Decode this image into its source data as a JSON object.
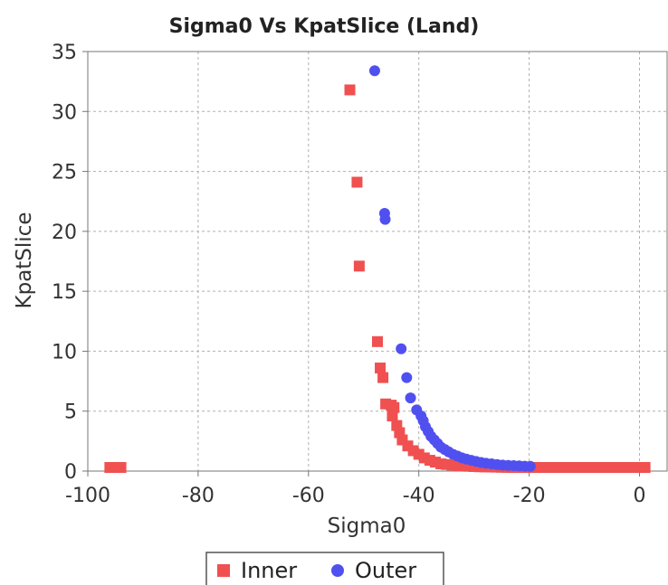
{
  "chart_data": {
    "type": "scatter",
    "title": "Sigma0 Vs KpatSlice (Land)",
    "xlabel": "Sigma0",
    "ylabel": "KpatSlice",
    "xlim": [
      -100,
      5
    ],
    "ylim": [
      0,
      35
    ],
    "xticks": [
      -100,
      -80,
      -60,
      -40,
      -20,
      0
    ],
    "yticks": [
      0,
      5,
      10,
      15,
      20,
      25,
      30,
      35
    ],
    "grid": true,
    "legend_position": "bottom-center",
    "series": [
      {
        "name": "Inner",
        "marker": "square",
        "color": "#f05050",
        "points": [
          [
            -96,
            0.3
          ],
          [
            -95,
            0.3
          ],
          [
            -94,
            0.3
          ],
          [
            -52.5,
            31.8
          ],
          [
            -51.2,
            24.1
          ],
          [
            -50.8,
            17.1
          ],
          [
            -47.5,
            10.8
          ],
          [
            -47,
            8.6
          ],
          [
            -46.5,
            7.8
          ],
          [
            -46,
            5.6
          ],
          [
            -45,
            5.5
          ],
          [
            -44.5,
            5.3
          ],
          [
            -44.8,
            4.6
          ],
          [
            -44,
            3.8
          ],
          [
            -43.5,
            3.2
          ],
          [
            -43,
            2.6
          ],
          [
            -42,
            2.1
          ],
          [
            -41,
            1.7
          ],
          [
            -40,
            1.4
          ],
          [
            -39,
            1.1
          ],
          [
            -38,
            0.9
          ],
          [
            -37,
            0.75
          ],
          [
            -36,
            0.6
          ],
          [
            -35,
            0.55
          ],
          [
            -34,
            0.5
          ],
          [
            -33,
            0.45
          ],
          [
            -32,
            0.42
          ],
          [
            -31,
            0.4
          ],
          [
            -30,
            0.38
          ],
          [
            -29,
            0.36
          ],
          [
            -28,
            0.35
          ],
          [
            -27,
            0.34
          ],
          [
            -26,
            0.33
          ],
          [
            -25,
            0.32
          ],
          [
            -24,
            0.31
          ],
          [
            -23,
            0.3
          ],
          [
            -22,
            0.3
          ],
          [
            -21,
            0.3
          ],
          [
            -20,
            0.3
          ],
          [
            -19,
            0.3
          ],
          [
            -18,
            0.3
          ],
          [
            -17,
            0.3
          ],
          [
            -16,
            0.3
          ],
          [
            -15,
            0.3
          ],
          [
            -14,
            0.3
          ],
          [
            -13,
            0.3
          ],
          [
            -12,
            0.3
          ],
          [
            -11,
            0.3
          ],
          [
            -10,
            0.3
          ],
          [
            -9,
            0.3
          ],
          [
            -8,
            0.3
          ],
          [
            -7,
            0.3
          ],
          [
            -6,
            0.3
          ],
          [
            -5,
            0.3
          ],
          [
            -4,
            0.3
          ],
          [
            -3,
            0.3
          ],
          [
            -2,
            0.3
          ],
          [
            -1,
            0.3
          ],
          [
            0,
            0.3
          ],
          [
            1,
            0.3
          ]
        ]
      },
      {
        "name": "Outer",
        "marker": "circle",
        "color": "#5050f0",
        "points": [
          [
            -48,
            33.4
          ],
          [
            -46.2,
            21.5
          ],
          [
            -46.1,
            21.0
          ],
          [
            -43.2,
            10.2
          ],
          [
            -42.2,
            7.8
          ],
          [
            -41.5,
            6.1
          ],
          [
            -40.4,
            5.1
          ],
          [
            -39.6,
            4.6
          ],
          [
            -39.2,
            4.2
          ],
          [
            -38.8,
            3.7
          ],
          [
            -38.3,
            3.3
          ],
          [
            -37.8,
            2.9
          ],
          [
            -37.2,
            2.6
          ],
          [
            -36.6,
            2.3
          ],
          [
            -36,
            2.0
          ],
          [
            -35.3,
            1.8
          ],
          [
            -34.6,
            1.6
          ],
          [
            -33.8,
            1.4
          ],
          [
            -33,
            1.25
          ],
          [
            -32.2,
            1.1
          ],
          [
            -31.4,
            1.0
          ],
          [
            -30.5,
            0.9
          ],
          [
            -29.6,
            0.8
          ],
          [
            -28.7,
            0.72
          ],
          [
            -27.8,
            0.65
          ],
          [
            -26.8,
            0.6
          ],
          [
            -25.8,
            0.55
          ],
          [
            -24.8,
            0.5
          ],
          [
            -23.8,
            0.47
          ],
          [
            -22.8,
            0.45
          ],
          [
            -21.8,
            0.43
          ],
          [
            -20.8,
            0.41
          ],
          [
            -19.8,
            0.4
          ]
        ]
      }
    ]
  }
}
